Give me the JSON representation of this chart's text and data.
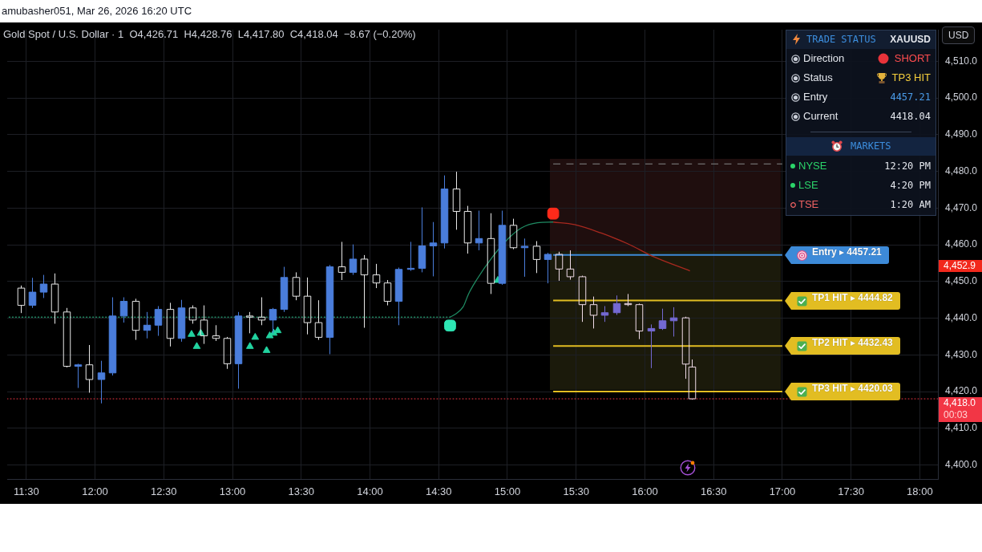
{
  "chart_data": [
    {
      "type": "candlestick",
      "title": "Gold Spot / U.S. Dollar · 1  O4,426.71  H4,428.76  L4,417.80  C4,418.04  −8.67 (−0.20%)",
      "subtitle": "amubasher051, Mar 26, 2026 16:20 UTC",
      "ylabel": "USD",
      "x": [
        11.458,
        11.542,
        11.625,
        11.708,
        11.792,
        11.875,
        11.958,
        12.042,
        12.125,
        12.208,
        12.292,
        12.375,
        12.458,
        12.542,
        12.625,
        12.708,
        12.792,
        12.875,
        12.958,
        13.042,
        13.125,
        13.208,
        13.292,
        13.375,
        13.458,
        13.542,
        13.625,
        13.708,
        13.792,
        13.875,
        13.958,
        14.042,
        14.125,
        14.208,
        14.292,
        14.375,
        14.458,
        14.542,
        14.625,
        14.708,
        14.792,
        14.875,
        14.958,
        15.042,
        15.125,
        15.208,
        15.292,
        15.375,
        15.458,
        15.542,
        15.625,
        15.708,
        15.792,
        15.875,
        15.958,
        16.042,
        16.125,
        16.208,
        16.292,
        16.342
      ],
      "ohlc": [
        [
          4448.2,
          4448.9,
          4441.4,
          4443.5
        ],
        [
          4443.5,
          4451.0,
          4442.8,
          4447.1
        ],
        [
          4447.1,
          4451.8,
          4445.5,
          4449.3
        ],
        [
          4449.3,
          4452.2,
          4438.5,
          4441.7
        ],
        [
          4441.7,
          4442.8,
          4426.6,
          4426.9
        ],
        [
          4426.9,
          4427.6,
          4421.0,
          4427.3
        ],
        [
          4427.3,
          4432.7,
          4419.7,
          4423.3
        ],
        [
          4423.3,
          4428.4,
          4416.8,
          4425.1
        ],
        [
          4425.1,
          4445.7,
          4424.4,
          4440.6
        ],
        [
          4440.6,
          4445.7,
          4438.8,
          4444.6
        ],
        [
          4444.6,
          4445.3,
          4434.1,
          4436.7
        ],
        [
          4436.7,
          4441.7,
          4434.5,
          4438.1
        ],
        [
          4438.1,
          4443.3,
          4435.2,
          4442.4
        ],
        [
          4442.4,
          4444.2,
          4432.3,
          4434.5
        ],
        [
          4434.5,
          4445.0,
          4433.6,
          4442.8
        ],
        [
          4442.8,
          4443.5,
          4438.5,
          4439.5
        ],
        [
          4439.5,
          4443.5,
          4433.0,
          4435.2
        ],
        [
          4435.2,
          4438.1,
          4433.8,
          4434.5
        ],
        [
          4434.5,
          4434.9,
          4426.2,
          4427.6
        ],
        [
          4427.6,
          4441.7,
          4420.8,
          4440.6
        ],
        [
          4440.6,
          4441.7,
          4435.9,
          4440.3
        ],
        [
          4440.3,
          4445.7,
          4438.1,
          4439.5
        ],
        [
          4439.5,
          4442.8,
          4435.9,
          4442.4
        ],
        [
          4442.4,
          4454.0,
          4441.7,
          4451.1
        ],
        [
          4451.1,
          4452.5,
          4444.9,
          4446.0
        ],
        [
          4446.0,
          4451.1,
          4435.6,
          4438.8
        ],
        [
          4438.8,
          4444.9,
          4434.1,
          4434.8
        ],
        [
          4434.8,
          4454.5,
          4430.2,
          4454.0
        ],
        [
          4454.0,
          4460.8,
          4450.4,
          4452.5
        ],
        [
          4452.5,
          4460.1,
          4451.8,
          4456.1
        ],
        [
          4456.1,
          4457.2,
          4437.4,
          4451.8
        ],
        [
          4451.8,
          4454.8,
          4448.2,
          4449.6
        ],
        [
          4449.6,
          4450.4,
          4443.5,
          4444.6
        ],
        [
          4444.6,
          4453.8,
          4438.1,
          4453.3
        ],
        [
          4453.3,
          4460.8,
          4452.9,
          4453.6
        ],
        [
          4453.6,
          4470.2,
          4452.5,
          4459.7
        ],
        [
          4459.7,
          4466.2,
          4451.4,
          4460.5
        ],
        [
          4460.5,
          4478.9,
          4459.0,
          4475.2
        ],
        [
          4475.2,
          4479.9,
          4464.1,
          4469.1
        ],
        [
          4469.1,
          4470.6,
          4457.6,
          4460.5
        ],
        [
          4460.5,
          4469.3,
          4458.5,
          4461.7
        ],
        [
          4461.7,
          4468.6,
          4446.6,
          4449.5
        ],
        [
          4449.5,
          4469.3,
          4449.1,
          4465.3
        ],
        [
          4465.3,
          4467.1,
          4458.8,
          4459.2
        ],
        [
          4459.2,
          4461.7,
          4451.3,
          4459.6
        ],
        [
          4459.6,
          4461.0,
          4452.3,
          4456.0
        ],
        [
          4456.0,
          4457.8,
          4449.5,
          4457.4
        ],
        [
          4457.4,
          4458.1,
          4450.2,
          4453.4
        ],
        [
          4453.4,
          4458.5,
          4450.5,
          4451.3
        ],
        [
          4451.3,
          4451.6,
          4439.0,
          4443.7
        ],
        [
          4443.7,
          4445.9,
          4437.2,
          4440.8
        ],
        [
          4440.8,
          4443.3,
          4439.0,
          4441.5
        ],
        [
          4441.5,
          4446.2,
          4440.9,
          4444.0
        ],
        [
          4444.0,
          4446.6,
          4443.3,
          4443.7
        ],
        [
          4443.7,
          4444.0,
          4434.3,
          4436.5
        ],
        [
          4436.5,
          4438.3,
          4426.4,
          4437.2
        ],
        [
          4437.2,
          4442.6,
          4436.8,
          4439.3
        ],
        [
          4439.3,
          4443.0,
          4435.0,
          4440.1
        ],
        [
          4440.1,
          4440.4,
          4423.5,
          4427.5
        ],
        [
          4426.71,
          4428.76,
          4417.8,
          4418.04
        ]
      ],
      "colors": [
        "#e8e8e8",
        "#4a7ddb",
        "#4a7ddb",
        "#e8e8e8",
        "#e8e8e8",
        "#4a7ddb",
        "#e8e8e8",
        "#4a7ddb",
        "#4a7ddb",
        "#4a7ddb",
        "#e8e8e8",
        "#4a7ddb",
        "#4a7ddb",
        "#e8e8e8",
        "#4a7ddb",
        "#e8e8e8",
        "#e8e8e8",
        "#e8e8e8",
        "#e8e8e8",
        "#4a7ddb",
        "#e8e8e8",
        "#e8e8e8",
        "#4a7ddb",
        "#4a7ddb",
        "#e8e8e8",
        "#e8e8e8",
        "#e8e8e8",
        "#4a7ddb",
        "#e8e8e8",
        "#4a7ddb",
        "#e8e8e8",
        "#e8e8e8",
        "#e8e8e8",
        "#4a7ddb",
        "#4a7ddb",
        "#4a7ddb",
        "#4a7ddb",
        "#4a7ddb",
        "#e8e8e8",
        "#e8e8e8",
        "#4a7ddb",
        "#e8e8e8",
        "#4a7ddb",
        "#e8e8e8",
        "#4a7ddb",
        "#e8e8e8",
        "#4a7ddb",
        "#f0dce8",
        "#f0dce8",
        "#f0dce8",
        "#f0dce8",
        "#7469d2",
        "#7469d2",
        "#f0dce8",
        "#f0dce8",
        "#7469d2",
        "#7469d2",
        "#7469d2",
        "#f0dce8",
        "#f0dce8"
      ],
      "xlim": [
        11.361,
        18.132
      ],
      "xticks": [
        {
          "value": 11.5,
          "label": "11:30"
        },
        {
          "value": 12,
          "label": "12:00"
        },
        {
          "value": 12.5,
          "label": "12:30"
        },
        {
          "value": 13,
          "label": "13:00"
        },
        {
          "value": 13.5,
          "label": "13:30"
        },
        {
          "value": 14,
          "label": "14:00"
        },
        {
          "value": 14.5,
          "label": "14:30"
        },
        {
          "value": 15,
          "label": "15:00"
        },
        {
          "value": 15.5,
          "label": "15:30"
        },
        {
          "value": 16,
          "label": "16:00"
        },
        {
          "value": 16.5,
          "label": "16:30"
        },
        {
          "value": 17,
          "label": "17:00"
        },
        {
          "value": 17.5,
          "label": "17:30"
        },
        {
          "value": 18,
          "label": "18:00"
        }
      ],
      "ylim": [
        4396.2,
        4518.6
      ],
      "yticks": [
        {
          "value": 4400,
          "label": "4,400.0"
        },
        {
          "value": 4410,
          "label": "4,410.0"
        },
        {
          "value": 4420,
          "label": "4,420.0"
        },
        {
          "value": 4430,
          "label": "4,430.0"
        },
        {
          "value": 4440,
          "label": "4,440.0"
        },
        {
          "value": 4450,
          "label": "4,450.0"
        },
        {
          "value": 4460,
          "label": "4,460.0"
        },
        {
          "value": 4470,
          "label": "4,470.0"
        },
        {
          "value": 4480,
          "label": "4,480.0"
        },
        {
          "value": 4490,
          "label": "4,490.0"
        },
        {
          "value": 4500,
          "label": "4,500.0"
        },
        {
          "value": 4510,
          "label": "4,510.0"
        }
      ],
      "grid": true,
      "series": [
        {
          "type": "line",
          "x": [
            11.375,
            14.583
          ],
          "values": [
            4440.3,
            4440.3
          ],
          "color": "#1f8a62",
          "line_style": "dotted"
        },
        {
          "type": "line",
          "x": [
            14.583,
            14.617,
            14.678,
            14.717,
            14.775,
            14.892,
            15.007,
            15.103,
            15.218,
            15.333
          ],
          "values": [
            4440.3,
            4441.0,
            4443.1,
            4446.6,
            4450.4,
            4456.7,
            4461.7,
            4464.6,
            4466.0,
            4466.2
          ],
          "color": "#1f8a62"
        },
        {
          "type": "line",
          "x": [
            15.333,
            15.488,
            15.682,
            15.875,
            16.067,
            16.328
          ],
          "values": [
            4466.2,
            4465.5,
            4463.2,
            4460.3,
            4456.7,
            4452.9
          ],
          "color": "#a8291f"
        },
        {
          "type": "line",
          "x": [
            15.333,
            17
          ],
          "values": [
            4482.0,
            4482.0
          ],
          "color": "#6e6e6e",
          "line_style": "dashed"
        },
        {
          "type": "line",
          "name": "Entry ▸ 4457.21",
          "x": [
            15.333,
            17
          ],
          "values": [
            4457.21,
            4457.21
          ],
          "color": "#3d8ad8"
        },
        {
          "type": "line",
          "name": "TP1 HIT ▸ 4444.82",
          "x": [
            15.333,
            17
          ],
          "values": [
            4444.82,
            4444.82
          ],
          "color": "#e2bd22"
        },
        {
          "type": "line",
          "name": "TP2 HIT ▸ 4432.43",
          "x": [
            15.333,
            17
          ],
          "values": [
            4432.43,
            4432.43
          ],
          "color": "#e2bd22"
        },
        {
          "type": "line",
          "name": "TP3 HIT ▸ 4420.03",
          "x": [
            15.333,
            17
          ],
          "values": [
            4420.03,
            4420.03
          ],
          "color": "#e2bd22"
        },
        {
          "type": "scatter",
          "x": [
            12.702,
            12.74,
            12.769,
            13.127,
            13.165,
            13.248,
            13.271,
            13.3,
            13.329,
            14.93
          ],
          "values": [
            4435.6,
            4432.3,
            4435.9,
            4432.3,
            4434.8,
            4431.2,
            4435.2,
            4435.9,
            4436.6,
            4450.3
          ],
          "color": "#22d3a0",
          "marker": "triangle"
        },
        {
          "type": "scatter",
          "x": [
            14.583
          ],
          "values": [
            4438.0
          ],
          "color": "#2ee6b4",
          "marker": "square"
        },
        {
          "type": "scatter",
          "x": [
            15.333
          ],
          "values": [
            4468.5
          ],
          "color": "#ff2a1a",
          "marker": "square"
        }
      ],
      "ref_lines": [
        {
          "axis": "y",
          "value": 4418.04,
          "label": "4,418.0",
          "color": "#f23645",
          "line_style": "dotted"
        }
      ],
      "annotations": [
        "4,452.9",
        "00:03"
      ]
    },
    {
      "type": "other",
      "title": "TRADE STATUS",
      "annotations": [
        "XAUUSD",
        "Direction",
        "SHORT",
        "Status",
        "TP3 HIT",
        "Entry",
        "4457.21",
        "Current",
        "4418.04",
        "MARKETS",
        "NYSE",
        "12:20 PM",
        "LSE",
        "4:20 PM",
        "TSE",
        "1:20 AM"
      ]
    }
  ]
}
